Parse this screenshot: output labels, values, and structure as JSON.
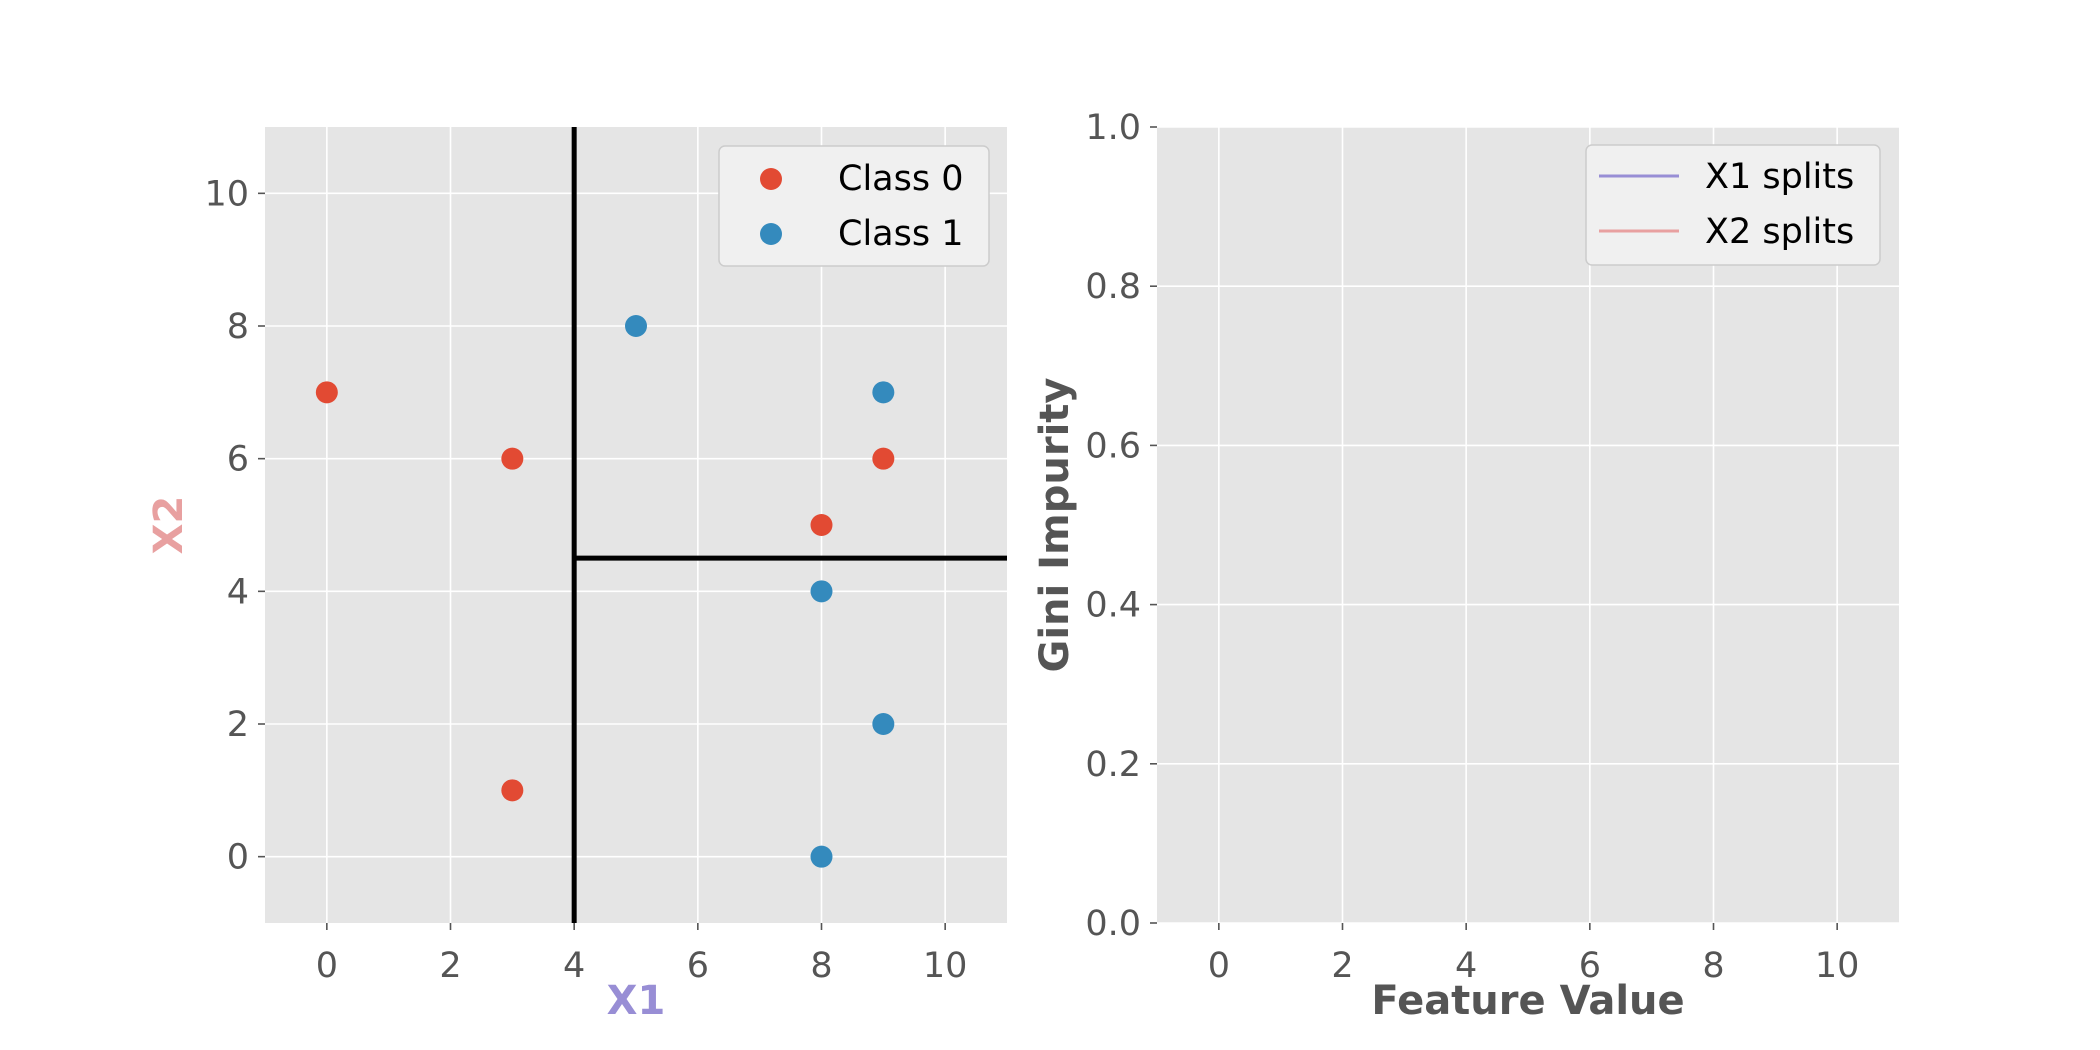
{
  "chart_data": [
    {
      "type": "scatter",
      "title": "",
      "xlabel": "X1",
      "ylabel": "X2",
      "xlabel_color": "#988ED5",
      "ylabel_color": "#E8A0A0",
      "xlim": [
        -1,
        11
      ],
      "ylim": [
        -1,
        11
      ],
      "xticks": [
        0,
        2,
        4,
        6,
        8,
        10
      ],
      "yticks": [
        0,
        2,
        4,
        6,
        8,
        10
      ],
      "grid": true,
      "legend": "top-right",
      "series": [
        {
          "name": "Class 0",
          "color": "#E24A33",
          "points": [
            {
              "x": 0,
              "y": 7
            },
            {
              "x": 3,
              "y": 6
            },
            {
              "x": 8,
              "y": 5
            },
            {
              "x": 9,
              "y": 6
            },
            {
              "x": 3,
              "y": 1
            }
          ]
        },
        {
          "name": "Class 1",
          "color": "#348ABD",
          "points": [
            {
              "x": 5,
              "y": 8
            },
            {
              "x": 9,
              "y": 7
            },
            {
              "x": 8,
              "y": 4
            },
            {
              "x": 9,
              "y": 2
            },
            {
              "x": 8,
              "y": 0
            }
          ]
        }
      ],
      "split_lines": [
        {
          "orientation": "vertical",
          "x": 4,
          "y_range": [
            -1,
            11
          ]
        },
        {
          "orientation": "horizontal",
          "y": 4.5,
          "x_range": [
            4,
            11
          ]
        }
      ],
      "split_color": "#000000"
    },
    {
      "type": "line",
      "title": "",
      "xlabel": "Feature Value",
      "ylabel": "Gini Impurity",
      "label_color": "#555555",
      "xlim": [
        -1,
        11
      ],
      "ylim": [
        0,
        1
      ],
      "xticks": [
        0,
        2,
        4,
        6,
        8,
        10
      ],
      "yticks": [
        "0.0",
        "0.2",
        "0.4",
        "0.6",
        "0.8",
        "1.0"
      ],
      "grid": true,
      "legend": "top-right",
      "series": [
        {
          "name": "X1 splits",
          "color": "#988ED5",
          "points": []
        },
        {
          "name": "X2 splits",
          "color": "#E8A0A0",
          "points": []
        }
      ]
    }
  ]
}
